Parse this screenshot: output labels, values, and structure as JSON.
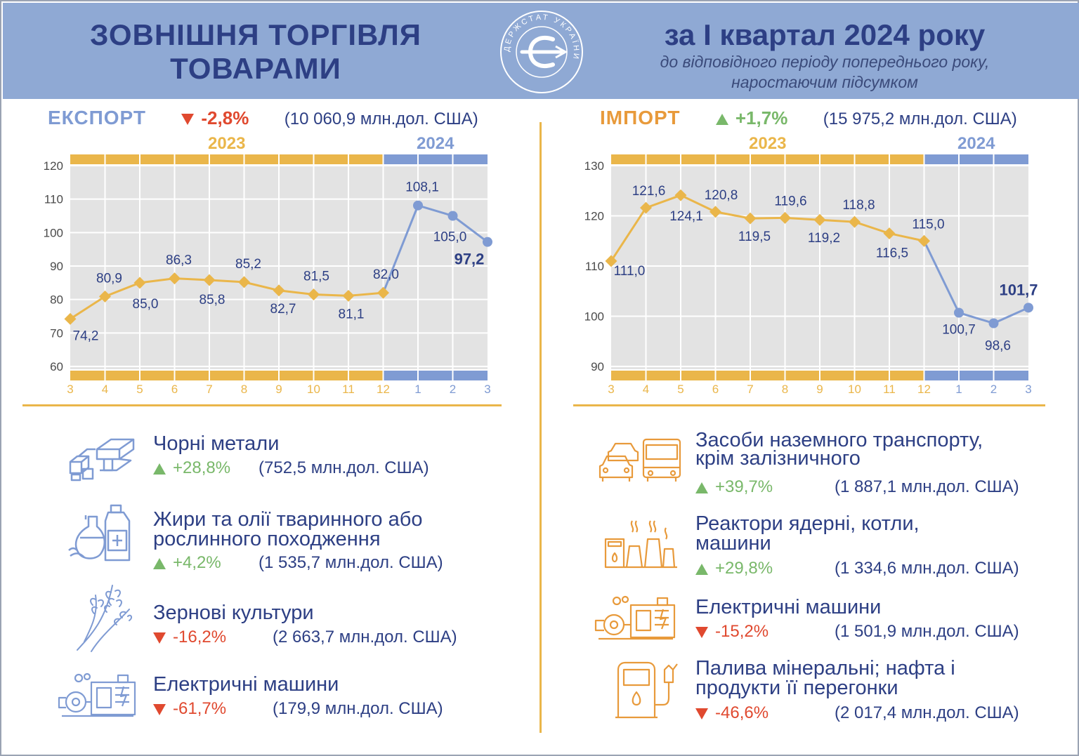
{
  "header": {
    "title": "ЗОВНІШНЯ ТОРГІВЛЯ ТОВАРАМИ",
    "period": "за І квартал 2024 року",
    "subtitle": "до відповідного періоду попереднього року, наростаючим підсумком",
    "logo_text": "ДЕРЖСТАТ УКРАЇНИ",
    "logo_icon": "derzhstat-logo-icon"
  },
  "colors": {
    "header_bg": "#8fa9d4",
    "title": "#2d3f84",
    "orange": "#eab64a",
    "blue": "#7f9bd3",
    "up": "#79b86a",
    "down": "#e0492f",
    "import_title": "#e89a3b",
    "export_title": "#7f9bd3",
    "grid_bg": "#e3e3e3"
  },
  "export": {
    "name": "ЕКСПОРТ",
    "change": "-2,8%",
    "direction": "down",
    "value": "(10 060,9 млн.дол. США)"
  },
  "import": {
    "name": "ІМПОРТ",
    "change": "+1,7%",
    "direction": "up",
    "value": "(15 975,2  млн.дол. США)"
  },
  "chart_data": [
    {
      "type": "line",
      "id": "export",
      "year_labels": [
        "2023",
        "2024"
      ],
      "categories": [
        "3",
        "4",
        "5",
        "6",
        "7",
        "8",
        "9",
        "10",
        "11",
        "12",
        "1",
        "2",
        "3"
      ],
      "values": [
        74.2,
        80.9,
        85.0,
        86.3,
        85.8,
        85.2,
        82.7,
        81.5,
        81.1,
        82.0,
        108.1,
        105.0,
        97.2
      ],
      "labels": [
        "74,2",
        "80,9",
        "85,0",
        "86,3",
        "85,8",
        "85,2",
        "82,7",
        "81,5",
        "81,1",
        "82,0",
        "108,1",
        "105,0",
        "97,2"
      ],
      "year_split_index": 10,
      "yticks": [
        "60",
        "70",
        "80",
        "90",
        "100",
        "110",
        "120"
      ],
      "ylim": [
        60,
        120
      ],
      "grid": true
    },
    {
      "type": "line",
      "id": "import",
      "year_labels": [
        "2023",
        "2024"
      ],
      "categories": [
        "3",
        "4",
        "5",
        "6",
        "7",
        "8",
        "9",
        "10",
        "11",
        "12",
        "1",
        "2",
        "3"
      ],
      "values": [
        111.0,
        121.6,
        124.1,
        120.8,
        119.5,
        119.6,
        119.2,
        118.8,
        116.5,
        115.0,
        100.7,
        98.6,
        101.7
      ],
      "labels": [
        "111,0",
        "121,6",
        "124,1",
        "120,8",
        "119,5",
        "119,6",
        "119,2",
        "118,8",
        "116,5",
        "115,0",
        "100,7",
        "98,6",
        "101,7"
      ],
      "year_split_index": 10,
      "yticks": [
        "90",
        "100",
        "110",
        "120",
        "130"
      ],
      "ylim": [
        90,
        130
      ],
      "grid": true
    }
  ],
  "export_items": [
    {
      "name": "Чорні метали",
      "change": "+28,8%",
      "direction": "up",
      "value": "(752,5 млн.дол. США)",
      "icon": "steel-beams-icon"
    },
    {
      "name": "Жири та олії тваринного або рослинного походження",
      "change": "+4,2%",
      "direction": "up",
      "value": "(1 535,7 млн.дол. США)",
      "icon": "oil-bottles-icon"
    },
    {
      "name": "Зернові культури",
      "change": "-16,2%",
      "direction": "down",
      "value": "(2 663,7 млн.дол. США)",
      "icon": "wheat-icon"
    },
    {
      "name": "Електричні машини",
      "change": "-61,7%",
      "direction": "down",
      "value": "(179,9 млн.дол. США)",
      "icon": "electric-machine-icon"
    }
  ],
  "import_items": [
    {
      "name": "Засоби наземного транспорту, крім залізничного",
      "change": "+39,7%",
      "direction": "up",
      "value": "(1 887,1 млн.дол. США)",
      "icon": "cars-bus-icon"
    },
    {
      "name": "Реактори ядерні, котли, машини",
      "change": "+29,8%",
      "direction": "up",
      "value": "(1 334,6 млн.дол. США)",
      "icon": "reactor-icon"
    },
    {
      "name": "Електричні машини",
      "change": "-15,2%",
      "direction": "down",
      "value": "(1 501,9 млн.дол. США)",
      "icon": "electric-machine-icon"
    },
    {
      "name": "Палива мінеральні; нафта і продукти її перегонки",
      "change": "-46,6%",
      "direction": "down",
      "value": "(2 017,4 млн.дол. США)",
      "icon": "fuel-pump-icon"
    }
  ]
}
